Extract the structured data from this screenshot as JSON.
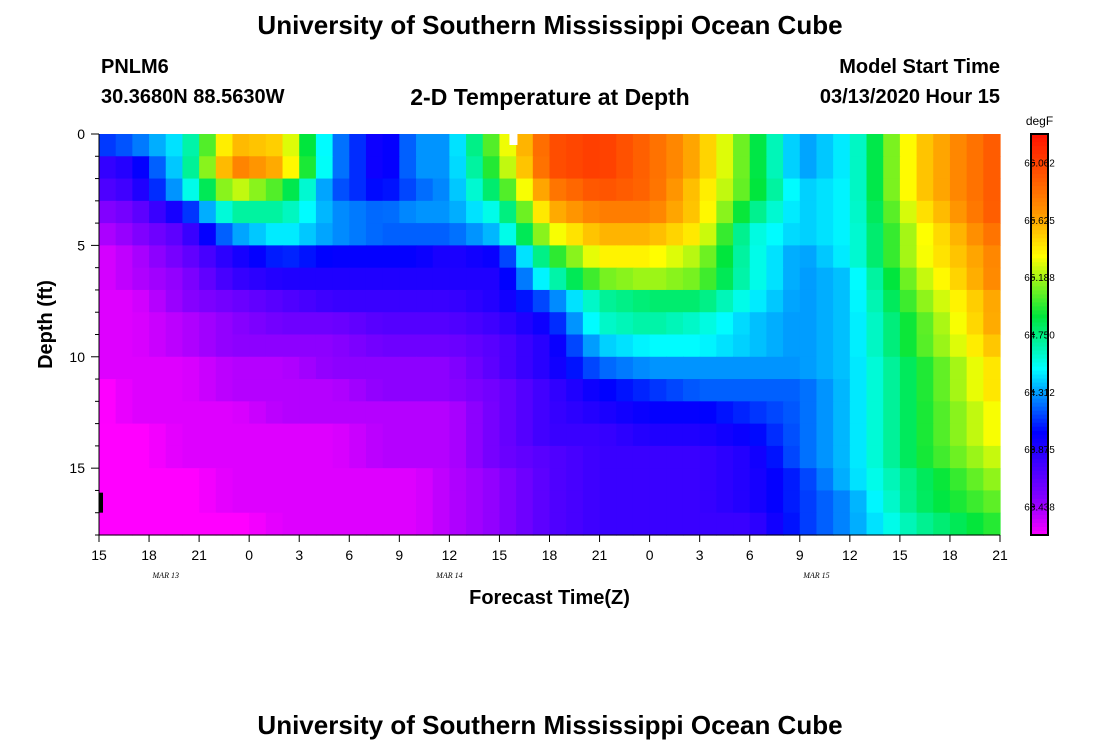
{
  "header": {
    "title": "University of Southern Mississippi Ocean Cube",
    "station_id": "PNLM6",
    "station_coords": "30.3680N 88.5630W",
    "plot_title": "2-D Temperature at Depth",
    "model_label": "Model Start Time",
    "model_time": "03/13/2020 Hour 15",
    "footer_title": "University of Southern Mississippi Ocean Cube"
  },
  "chart_data": {
    "type": "heatmap",
    "title": "2-D Temperature at Depth",
    "xlabel": "Forecast Time(Z)",
    "ylabel": "Depth (ft)",
    "x_tick_labels": [
      "15",
      "18",
      "21",
      "0",
      "3",
      "6",
      "9",
      "12",
      "15",
      "18",
      "21",
      "0",
      "3",
      "6",
      "9",
      "12",
      "15",
      "18",
      "21"
    ],
    "date_labels": [
      {
        "label": "MAR 13",
        "hour_index": 4
      },
      {
        "label": "MAR 14",
        "hour_index": 21
      },
      {
        "label": "MAR 15",
        "hour_index": 43
      }
    ],
    "x_range_hours": [
      0,
      54
    ],
    "y_ticks": [
      0,
      5,
      10,
      15
    ],
    "y_range_ft": [
      0,
      18
    ],
    "colorbar": {
      "unit": "degF",
      "labels": [
        "66.062",
        "65.625",
        "65.188",
        "64.750",
        "64.312",
        "63.875",
        "63.438"
      ],
      "vmin": 63.22,
      "vmax": 66.28
    },
    "n_levels": 18,
    "level_temps_at_key_hours": {
      "hours": [
        0,
        2,
        5,
        8,
        11,
        14,
        17,
        19,
        21,
        24,
        27,
        30,
        33,
        36,
        39,
        42,
        45,
        49,
        54
      ],
      "temps": [
        [
          64.1,
          64.2,
          64.5,
          65.6,
          65.5,
          64.3,
          63.9,
          64.3,
          64.3,
          65.2,
          66.0,
          66.1,
          65.9,
          65.6,
          65.0,
          64.3,
          64.5,
          65.5,
          66.0
        ],
        [
          63.8,
          63.9,
          64.5,
          65.8,
          65.6,
          64.3,
          63.9,
          64.3,
          64.3,
          65.1,
          66.0,
          66.1,
          65.9,
          65.6,
          65.0,
          64.3,
          64.5,
          65.5,
          66.0
        ],
        [
          63.7,
          63.8,
          64.4,
          65.3,
          65.0,
          64.2,
          64.0,
          64.2,
          64.3,
          64.9,
          65.8,
          66.0,
          65.9,
          65.5,
          65.0,
          64.4,
          64.5,
          65.5,
          66.0
        ],
        [
          63.5,
          63.6,
          64.0,
          64.7,
          64.7,
          64.3,
          64.2,
          64.3,
          64.3,
          64.6,
          65.6,
          65.8,
          65.8,
          65.5,
          64.8,
          64.4,
          64.5,
          65.4,
          66.0
        ],
        [
          63.4,
          63.5,
          63.7,
          64.3,
          64.5,
          64.3,
          64.2,
          64.2,
          64.2,
          64.4,
          65.3,
          65.6,
          65.6,
          65.4,
          64.6,
          64.4,
          64.5,
          65.3,
          65.9
        ],
        [
          63.3,
          63.4,
          63.6,
          63.9,
          64.1,
          64.0,
          64.0,
          64.0,
          63.9,
          64.0,
          64.9,
          65.4,
          65.4,
          65.2,
          64.6,
          64.3,
          64.5,
          65.3,
          65.8
        ],
        [
          63.3,
          63.4,
          63.5,
          63.8,
          63.9,
          63.9,
          63.9,
          63.9,
          63.9,
          63.9,
          64.6,
          65.1,
          65.2,
          65.1,
          64.6,
          64.3,
          64.4,
          65.2,
          65.8
        ],
        [
          63.3,
          63.3,
          63.5,
          63.6,
          63.7,
          63.8,
          63.8,
          63.8,
          63.8,
          63.9,
          64.2,
          64.7,
          64.8,
          64.8,
          64.5,
          64.3,
          64.4,
          65.1,
          65.7
        ],
        [
          63.3,
          63.3,
          63.4,
          63.5,
          63.6,
          63.6,
          63.7,
          63.7,
          63.7,
          63.8,
          64.0,
          64.6,
          64.7,
          64.6,
          64.4,
          64.3,
          64.4,
          65.0,
          65.7
        ],
        [
          63.3,
          63.3,
          63.4,
          63.5,
          63.5,
          63.5,
          63.6,
          63.6,
          63.6,
          63.7,
          63.9,
          64.4,
          64.5,
          64.5,
          64.4,
          64.3,
          64.4,
          65.0,
          65.6
        ],
        [
          63.3,
          63.3,
          63.3,
          63.4,
          63.4,
          63.5,
          63.5,
          63.5,
          63.5,
          63.7,
          63.9,
          64.2,
          64.3,
          64.3,
          64.3,
          64.3,
          64.4,
          64.9,
          65.5
        ],
        [
          63.2,
          63.3,
          63.3,
          63.4,
          63.4,
          63.4,
          63.5,
          63.5,
          63.5,
          63.6,
          63.8,
          64.0,
          64.1,
          64.2,
          64.2,
          64.2,
          64.4,
          64.9,
          65.5
        ],
        [
          63.2,
          63.3,
          63.3,
          63.3,
          63.4,
          63.4,
          63.4,
          63.4,
          63.4,
          63.6,
          63.8,
          63.9,
          64.0,
          64.0,
          64.1,
          64.2,
          64.4,
          64.9,
          65.4
        ],
        [
          63.2,
          63.2,
          63.3,
          63.3,
          63.3,
          63.3,
          63.4,
          63.4,
          63.4,
          63.6,
          63.8,
          63.8,
          63.9,
          63.9,
          64.0,
          64.2,
          64.4,
          64.9,
          65.4
        ],
        [
          63.2,
          63.2,
          63.3,
          63.3,
          63.3,
          63.3,
          63.4,
          63.4,
          63.4,
          63.6,
          63.7,
          63.8,
          63.8,
          63.8,
          63.9,
          64.2,
          64.4,
          64.9,
          65.3
        ],
        [
          63.2,
          63.2,
          63.2,
          63.3,
          63.3,
          63.3,
          63.3,
          63.3,
          63.4,
          63.5,
          63.7,
          63.8,
          63.8,
          63.8,
          63.9,
          64.1,
          64.4,
          64.8,
          65.2
        ],
        [
          63.2,
          63.2,
          63.2,
          63.3,
          63.3,
          63.3,
          63.3,
          63.3,
          63.4,
          63.5,
          63.7,
          63.8,
          63.8,
          63.8,
          63.9,
          64.1,
          64.3,
          64.8,
          65.1
        ],
        [
          63.2,
          63.2,
          63.2,
          63.2,
          63.3,
          63.3,
          63.3,
          63.3,
          63.4,
          63.5,
          63.7,
          63.8,
          63.8,
          63.8,
          63.8,
          64.1,
          64.3,
          64.7,
          65.0
        ]
      ]
    }
  }
}
